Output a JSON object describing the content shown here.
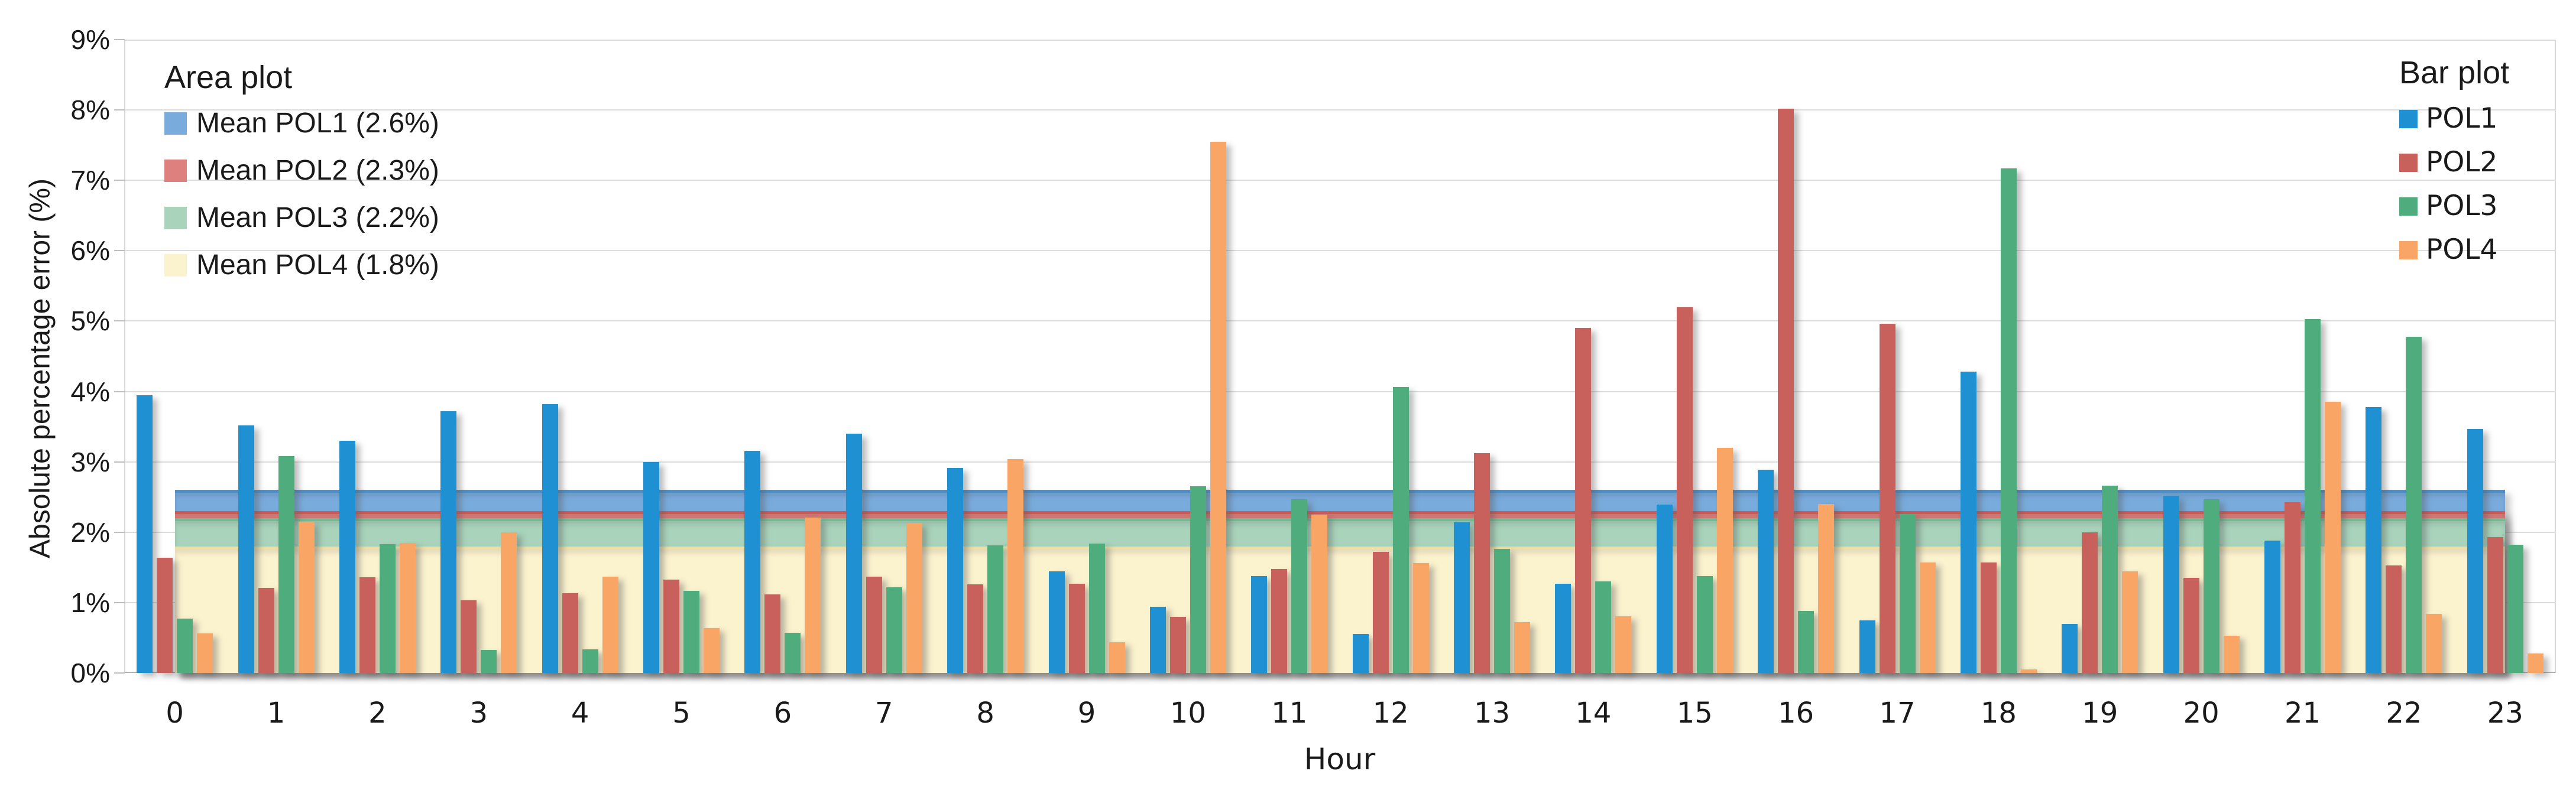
{
  "chart_data": {
    "type": "bar",
    "title": "",
    "xlabel": "Hour",
    "ylabel": "Absolute percentage error (%)",
    "ylim": [
      0,
      9
    ],
    "grid": "horizontal",
    "yticks": [
      0,
      1,
      2,
      3,
      4,
      5,
      6,
      7,
      8,
      9
    ],
    "ytick_suffix": "%",
    "categories": [
      "0",
      "1",
      "2",
      "3",
      "4",
      "5",
      "6",
      "7",
      "8",
      "9",
      "10",
      "11",
      "12",
      "13",
      "14",
      "15",
      "16",
      "17",
      "18",
      "19",
      "20",
      "21",
      "22",
      "23"
    ],
    "series": [
      {
        "name": "POL1",
        "color": "#1F91D3",
        "values": [
          3.95,
          3.52,
          3.3,
          3.72,
          3.82,
          3.0,
          3.16,
          3.4,
          2.91,
          1.44,
          0.94,
          1.38,
          0.55,
          2.14,
          1.27,
          2.39,
          2.89,
          0.75,
          4.28,
          0.7,
          2.52,
          1.88,
          3.78,
          3.47
        ]
      },
      {
        "name": "POL2",
        "color": "#C8605C",
        "values": [
          1.64,
          1.21,
          1.36,
          1.03,
          1.13,
          1.33,
          1.12,
          1.37,
          1.26,
          1.27,
          0.8,
          1.48,
          1.72,
          3.12,
          4.9,
          5.2,
          8.02,
          4.96,
          1.57,
          2.0,
          1.35,
          2.43,
          1.53,
          1.93
        ]
      },
      {
        "name": "POL3",
        "color": "#4FAD7D",
        "values": [
          0.77,
          3.08,
          1.83,
          0.33,
          0.34,
          1.17,
          0.57,
          1.22,
          1.81,
          1.84,
          2.65,
          2.47,
          4.06,
          1.76,
          1.3,
          1.38,
          0.88,
          2.26,
          7.17,
          2.66,
          2.47,
          5.03,
          4.78,
          1.82
        ]
      },
      {
        "name": "POL4",
        "color": "#F8A566",
        "values": [
          0.56,
          2.15,
          1.85,
          2.0,
          1.37,
          0.64,
          2.21,
          2.13,
          3.04,
          0.44,
          7.55,
          2.25,
          1.56,
          0.72,
          0.81,
          3.2,
          2.4,
          1.57,
          0.05,
          1.44,
          0.53,
          3.85,
          0.84,
          0.28
        ]
      }
    ],
    "mean_bands": [
      {
        "label": "Mean POL1 (2.6%)",
        "value": 2.6,
        "fill": "#79ACDD",
        "edge": "#4B8FCB"
      },
      {
        "label": "Mean POL2 (2.3%)",
        "value": 2.3,
        "fill": "#DE807D",
        "edge": "#CF5B57"
      },
      {
        "label": "Mean POL3 (2.2%)",
        "value": 2.2,
        "fill": "#A9D3BB",
        "edge": "#74BB94"
      },
      {
        "label": "Mean POL4 (1.8%)",
        "value": 1.8,
        "fill": "#FBF2CE",
        "edge": "#EFDFA4"
      }
    ],
    "legends": {
      "area": {
        "title": "Area plot",
        "items": [
          {
            "label": "Mean POL1 (2.6%)",
            "color": "#79ACDD"
          },
          {
            "label": "Mean POL2 (2.3%)",
            "color": "#DE807D"
          },
          {
            "label": "Mean POL3 (2.2%)",
            "color": "#A9D3BB"
          },
          {
            "label": "Mean POL4 (1.8%)",
            "color": "#FBF2CE"
          }
        ]
      },
      "bar": {
        "title": "Bar plot",
        "items": [
          {
            "label": "POL1",
            "color": "#1F91D3"
          },
          {
            "label": "POL2",
            "color": "#C8605C"
          },
          {
            "label": "POL3",
            "color": "#4FAD7D"
          },
          {
            "label": "POL4",
            "color": "#F8A566"
          }
        ]
      }
    }
  }
}
